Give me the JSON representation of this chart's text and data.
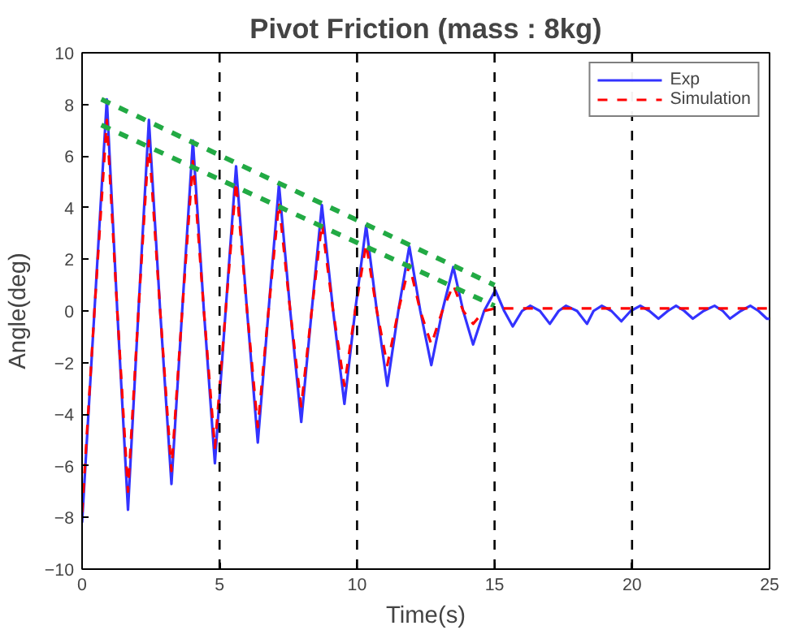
{
  "chart_data": {
    "type": "line",
    "title": "Pivot Friction (mass : 8kg)",
    "xlabel": "Time(s)",
    "ylabel": "Angle(deg)",
    "xlim": [
      0,
      25
    ],
    "ylim": [
      -10,
      10
    ],
    "xticks": [
      0,
      5,
      10,
      15,
      20,
      25
    ],
    "yticks": [
      -10,
      -8,
      -6,
      -4,
      -2,
      0,
      2,
      4,
      6,
      8,
      10
    ],
    "grid": false,
    "legend": "top right",
    "marker": "none",
    "ref_lines": [
      {
        "axis": "x",
        "value": 5,
        "label": null,
        "color": "#000000",
        "line_style": "dashed"
      },
      {
        "axis": "x",
        "value": 10,
        "label": null,
        "color": "#000000",
        "line_style": "dashed"
      },
      {
        "axis": "x",
        "value": 15,
        "label": null,
        "color": "#000000",
        "line_style": "dashed"
      },
      {
        "axis": "x",
        "value": 20,
        "label": null,
        "color": "#000000",
        "line_style": "dashed"
      }
    ],
    "series": [
      {
        "name": "Exp",
        "color": "#3333ff",
        "line_style": "solid",
        "x": [
          0,
          0.45,
          0.9,
          1.28,
          1.67,
          2.05,
          2.43,
          2.84,
          3.25,
          3.64,
          4.03,
          4.43,
          4.83,
          5.22,
          5.6,
          6.0,
          6.39,
          6.78,
          7.16,
          7.57,
          7.97,
          8.35,
          8.72,
          9.13,
          9.54,
          9.93,
          10.33,
          10.72,
          11.1,
          11.5,
          11.9,
          12.3,
          12.7,
          13.1,
          13.5,
          13.86,
          14.22,
          14.62,
          15.03,
          15.35,
          15.66,
          16.0,
          16.3,
          16.65,
          17.01,
          17.33,
          17.6,
          18.0,
          18.36,
          18.6,
          18.9,
          19.25,
          19.61,
          19.95,
          20.3,
          20.63,
          20.96,
          21.3,
          21.6,
          21.9,
          22.21,
          22.6,
          23.0,
          23.3,
          23.56,
          23.95,
          24.3,
          24.6,
          24.9,
          25
        ],
        "values": [
          -8.2,
          0,
          8.2,
          0,
          -7.7,
          0,
          7.4,
          0,
          -6.7,
          0,
          6.6,
          0,
          -5.9,
          0,
          5.6,
          0,
          -5.1,
          0,
          4.9,
          0,
          -4.3,
          0,
          4.1,
          0,
          -3.6,
          0,
          3.3,
          0,
          -2.9,
          0,
          2.5,
          0,
          -2.1,
          0,
          1.7,
          0,
          -1.3,
          0,
          0.8,
          0,
          -0.6,
          0,
          0.2,
          0,
          -0.5,
          0,
          0.2,
          0,
          -0.5,
          0,
          0.2,
          0,
          -0.4,
          0,
          0.2,
          0,
          -0.3,
          0,
          0.2,
          0,
          -0.3,
          0,
          0.2,
          0,
          -0.3,
          0,
          0.2,
          0,
          -0.3,
          -0.3
        ]
      },
      {
        "name": "Simulation",
        "color": "#ff0000",
        "line_style": "dashed",
        "x": [
          0,
          0.45,
          0.9,
          1.28,
          1.67,
          2.05,
          2.43,
          2.84,
          3.25,
          3.64,
          4.03,
          4.43,
          4.83,
          5.22,
          5.6,
          6.0,
          6.39,
          6.78,
          7.16,
          7.57,
          7.97,
          8.35,
          8.72,
          9.13,
          9.54,
          9.93,
          10.33,
          10.72,
          11.1,
          11.5,
          11.9,
          12.3,
          12.7,
          13.1,
          13.5,
          13.86,
          14.22,
          14.62,
          15.03,
          25
        ],
        "values": [
          -7.8,
          0,
          7.4,
          0,
          -7.0,
          0,
          6.6,
          0,
          -6.2,
          0,
          5.8,
          0,
          -5.3,
          0,
          5.0,
          0,
          -4.5,
          0,
          4.2,
          0,
          -3.7,
          0,
          3.4,
          0,
          -2.9,
          0,
          2.6,
          0,
          -2.1,
          0,
          1.8,
          0,
          -1.3,
          0,
          1.0,
          0,
          -0.5,
          0,
          0.1,
          0.1
        ]
      },
      {
        "color": "#22aa44",
        "line_style": "dashed",
        "x": [
          0.7,
          15
        ],
        "values": [
          8.2,
          1.0
        ]
      },
      {
        "color": "#22aa44",
        "line_style": "dashed",
        "x": [
          0.7,
          15
        ],
        "values": [
          7.2,
          0.2
        ]
      }
    ]
  }
}
